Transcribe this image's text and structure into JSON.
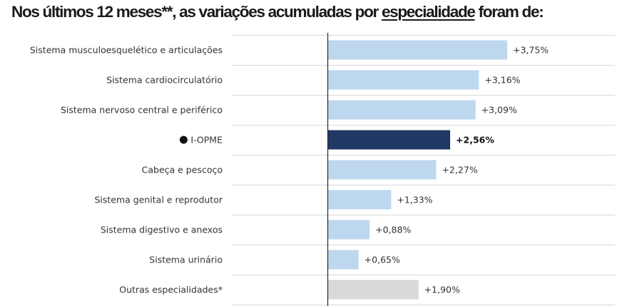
{
  "title": {
    "before": "Nos últimos 12 meses**, as variações acumuladas por ",
    "underlined": "especialidade",
    "after": " foram de:"
  },
  "colors": {
    "bar_default": "#bdd7ee",
    "bar_highlight": "#1f3864",
    "bar_other": "#d9d9d9",
    "gridline": "#d9d9d9",
    "axis": "#333333"
  },
  "chart_data": {
    "type": "bar",
    "orientation": "horizontal",
    "categories": [
      "Sistema musculoesquelético e articulações",
      "Sistema cardiocirculatório",
      "Sistema nervoso central e periférico",
      "I-OPME",
      "Cabeça e pescoço",
      "Sistema genital e reprodutor",
      "Sistema digestivo e anexos",
      "Sistema urinário",
      "Outras especialidades*"
    ],
    "values": [
      3.75,
      3.16,
      3.09,
      2.56,
      2.27,
      1.33,
      0.88,
      0.65,
      1.9
    ],
    "value_labels": [
      "+3,75%",
      "+3,16%",
      "+3,09%",
      "+2,56%",
      "+2,27%",
      "+1,33%",
      "+0,88%",
      "+0,65%",
      "+1,90%"
    ],
    "highlight": "I-OPME",
    "highlight_marker": "●",
    "other_category": "Outras especialidades*",
    "xlim": [
      0,
      4
    ],
    "grid": true,
    "legend": "none"
  }
}
